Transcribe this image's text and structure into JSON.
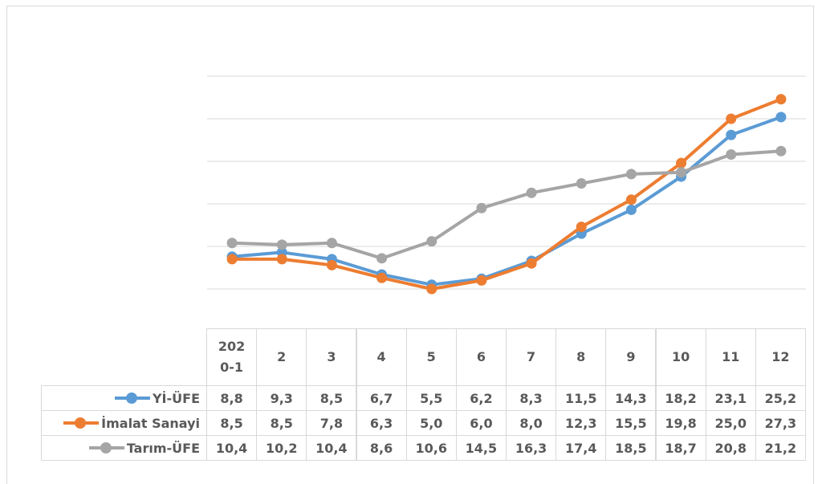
{
  "chart_data": {
    "type": "line",
    "categories": [
      "2020-1",
      "2",
      "3",
      "4",
      "5",
      "6",
      "7",
      "8",
      "9",
      "10",
      "11",
      "12"
    ],
    "ylim": [
      0,
      30
    ],
    "yticks": [
      5,
      10,
      15,
      20,
      25,
      30
    ],
    "grid": true,
    "series": [
      {
        "name": "Yİ-ÜFE",
        "color": "#5b9bd5",
        "values": [
          8.8,
          9.3,
          8.5,
          6.7,
          5.5,
          6.2,
          8.3,
          11.5,
          14.3,
          18.2,
          23.1,
          25.2
        ],
        "value_labels": [
          "8,8",
          "9,3",
          "8,5",
          "6,7",
          "5,5",
          "6,2",
          "8,3",
          "11,5",
          "14,3",
          "18,2",
          "23,1",
          "25,2"
        ]
      },
      {
        "name": "İmalat Sanayi",
        "color": "#ed7d31",
        "values": [
          8.5,
          8.5,
          7.8,
          6.3,
          5.0,
          6.0,
          8.0,
          12.3,
          15.5,
          19.8,
          25.0,
          27.3
        ],
        "value_labels": [
          "8,5",
          "8,5",
          "7,8",
          "6,3",
          "5,0",
          "6,0",
          "8,0",
          "12,3",
          "15,5",
          "19,8",
          "25,0",
          "27,3"
        ]
      },
      {
        "name": "Tarım-ÜFE",
        "color": "#a5a5a5",
        "values": [
          10.4,
          10.2,
          10.4,
          8.6,
          10.6,
          14.5,
          16.3,
          17.4,
          18.5,
          18.7,
          20.8,
          21.2
        ],
        "value_labels": [
          "10,4",
          "10,2",
          "10,4",
          "8,6",
          "10,6",
          "14,5",
          "16,3",
          "17,4",
          "18,5",
          "18,7",
          "20,8",
          "21,2"
        ]
      }
    ]
  }
}
